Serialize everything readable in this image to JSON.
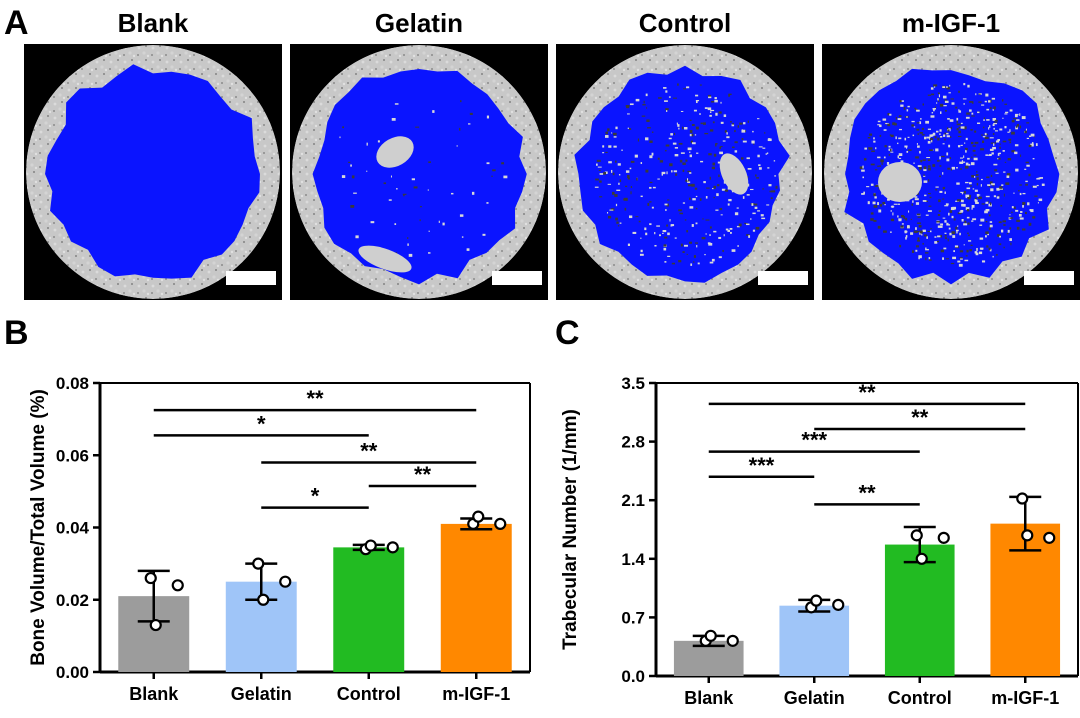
{
  "panels": {
    "a": "A",
    "b": "B",
    "c": "C"
  },
  "images": [
    {
      "title": "Blank",
      "color": "#0a14ff",
      "regrowth": 0
    },
    {
      "title": "Gelatin",
      "color": "#0a14ff",
      "regrowth": 1
    },
    {
      "title": "Control",
      "color": "#0a14ff",
      "regrowth": 3
    },
    {
      "title": "m-IGF-1",
      "color": "#0a14ff",
      "regrowth": 2
    }
  ],
  "chart_data": [
    {
      "type": "bar",
      "ylabel": "Bone Volume/Total Volume (%)",
      "categories": [
        "Blank",
        "Gelatin",
        "Control",
        "m-IGF-1"
      ],
      "values": [
        0.021,
        0.025,
        0.0345,
        0.041
      ],
      "errors": [
        0.007,
        0.005,
        0.0007,
        0.0015
      ],
      "points": [
        [
          0.026,
          0.013,
          0.024
        ],
        [
          0.03,
          0.02,
          0.025
        ],
        [
          0.034,
          0.035,
          0.0345
        ],
        [
          0.041,
          0.043,
          0.041
        ]
      ],
      "colors": [
        "#9c9c9c",
        "#9fc5f8",
        "#22bb22",
        "#ff8800"
      ],
      "ylim": [
        0,
        0.08
      ],
      "yticks": [
        "0.00",
        "0.02",
        "0.04",
        "0.06",
        "0.08"
      ],
      "significance": [
        {
          "from": 0,
          "to": 3,
          "y": 0.0725,
          "label": "**"
        },
        {
          "from": 0,
          "to": 2,
          "y": 0.0655,
          "label": "*"
        },
        {
          "from": 1,
          "to": 3,
          "y": 0.058,
          "label": "**"
        },
        {
          "from": 2,
          "to": 3,
          "y": 0.0515,
          "label": "**"
        },
        {
          "from": 1,
          "to": 2,
          "y": 0.0455,
          "label": "*"
        }
      ]
    },
    {
      "type": "bar",
      "ylabel": "Trabecular Number (1/mm)",
      "categories": [
        "Blank",
        "Gelatin",
        "Control",
        "m-IGF-1"
      ],
      "values": [
        0.42,
        0.84,
        1.57,
        1.82
      ],
      "errors": [
        0.06,
        0.07,
        0.21,
        0.32
      ],
      "points": [
        [
          0.42,
          0.48,
          0.42
        ],
        [
          0.82,
          0.9,
          0.85
        ],
        [
          1.68,
          1.4,
          1.65
        ],
        [
          2.12,
          1.68,
          1.65
        ]
      ],
      "colors": [
        "#9c9c9c",
        "#9fc5f8",
        "#22bb22",
        "#ff8800"
      ],
      "ylim": [
        0,
        3.5
      ],
      "yticks": [
        "0.0",
        "0.7",
        "1.4",
        "2.1",
        "2.8",
        "3.5"
      ],
      "significance": [
        {
          "from": 0,
          "to": 3,
          "y": 3.25,
          "label": "**"
        },
        {
          "from": 1,
          "to": 3,
          "y": 2.95,
          "label": "**"
        },
        {
          "from": 0,
          "to": 2,
          "y": 2.68,
          "label": "***"
        },
        {
          "from": 0,
          "to": 1,
          "y": 2.38,
          "label": "***"
        },
        {
          "from": 1,
          "to": 2,
          "y": 2.05,
          "label": "**"
        }
      ]
    }
  ]
}
